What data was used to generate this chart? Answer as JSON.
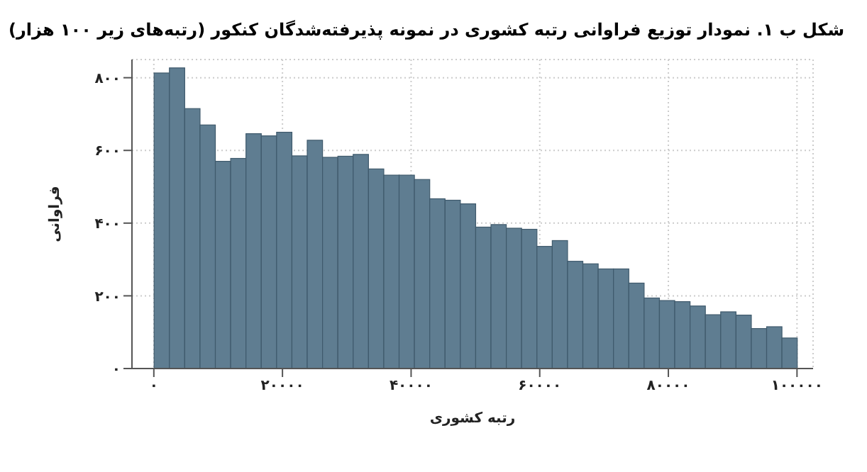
{
  "chart_data": {
    "type": "histogram",
    "title": "شکل ب ۱. نمودار توزیع فراوانی رتبه کشوری در نمونه پذیرفته‌شدگان کنکور (رتبه‌های زیر ۱۰۰ هزار)",
    "xlabel": "رتبه کشوری",
    "ylabel": "فراوانی",
    "color": "#5f7d91",
    "bins": [
      0,
      2381,
      4762,
      7143,
      9524,
      11905,
      14286,
      16667,
      19048,
      21429,
      23810,
      26190,
      28571,
      30952,
      33333,
      35714,
      38095,
      40476,
      42857,
      45238,
      47619,
      50000,
      52381,
      54762,
      57143,
      59524,
      61905,
      64286,
      66667,
      69048,
      71429,
      73810,
      76190,
      78571,
      80952,
      83333,
      85714,
      88095,
      90476,
      92857,
      95238,
      97619,
      100000
    ],
    "values": [
      813,
      827,
      715,
      670,
      570,
      578,
      646,
      640,
      650,
      585,
      628,
      581,
      584,
      589,
      549,
      532,
      532,
      520,
      467,
      463,
      453,
      389,
      396,
      386,
      383,
      336,
      352,
      295,
      288,
      274,
      274,
      235,
      194,
      187,
      184,
      172,
      148,
      156,
      147,
      110,
      115,
      84
    ],
    "xlim": [
      -3400,
      102500
    ],
    "ylim": [
      0,
      850
    ],
    "xticks": [
      {
        "value": 0,
        "label": "۰"
      },
      {
        "value": 20000,
        "label": "۲۰۰۰۰"
      },
      {
        "value": 40000,
        "label": "۴۰۰۰۰"
      },
      {
        "value": 60000,
        "label": "۶۰۰۰۰"
      },
      {
        "value": 80000,
        "label": "۸۰۰۰۰"
      },
      {
        "value": 100000,
        "label": "۱۰۰۰۰۰"
      }
    ],
    "yticks": [
      {
        "value": 0,
        "label": "۰"
      },
      {
        "value": 200,
        "label": "۲۰۰"
      },
      {
        "value": 400,
        "label": "۴۰۰"
      },
      {
        "value": 600,
        "label": "۶۰۰"
      },
      {
        "value": 800,
        "label": "۸۰۰"
      }
    ],
    "grid": true
  }
}
